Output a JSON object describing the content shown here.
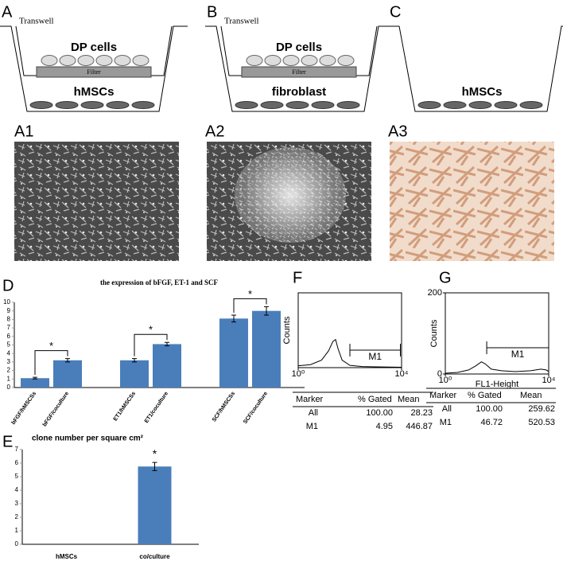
{
  "diagrams": [
    {
      "label": "A",
      "transwell": "Transwell",
      "top_cells": "DP cells",
      "filter": "Filter",
      "bottom_cells": "hMSCs"
    },
    {
      "label": "B",
      "transwell": "Transwell",
      "top_cells": "DP cells",
      "filter": "Filter",
      "bottom_cells": "fibroblast"
    },
    {
      "label": "C",
      "bottom_cells": "hMSCs"
    }
  ],
  "micrographs": [
    {
      "label": "A1"
    },
    {
      "label": "A2"
    },
    {
      "label": "A3"
    }
  ],
  "chart_data": [
    {
      "type": "bar",
      "label": "D",
      "title": "the expression of bFGF, ET-1 and SCF",
      "categories": [
        "bFGF/hMSCSs",
        "bFGF/coculture",
        "ET1/hMSCSs",
        "ET1/coculture",
        "SCF/hMSCSs",
        "SCF/coculture"
      ],
      "values": [
        1.1,
        3.2,
        3.2,
        5.1,
        8.1,
        9.0
      ],
      "errors": [
        0.1,
        0.2,
        0.2,
        0.2,
        0.4,
        0.5
      ],
      "color": "#4a7ebb",
      "ylim": [
        0,
        10
      ],
      "yticks": [
        0,
        1,
        2,
        3,
        4,
        5,
        6,
        7,
        8,
        9,
        10
      ],
      "annotations": [
        {
          "pair": [
            0,
            1
          ],
          "label": "*"
        },
        {
          "pair": [
            2,
            3
          ],
          "label": "*"
        },
        {
          "pair": [
            4,
            5
          ],
          "label": "*"
        }
      ]
    },
    {
      "type": "bar",
      "label": "E",
      "title": "clone number per square cm²",
      "categories": [
        "hMSCs",
        "co/culture"
      ],
      "values": [
        0,
        5.75
      ],
      "errors": [
        0,
        0.3
      ],
      "color": "#4a7ebb",
      "ylim": [
        0,
        7
      ],
      "yticks": [
        0,
        1,
        2,
        3,
        4,
        5,
        6,
        7
      ],
      "annotations": [
        {
          "pair": [
            1,
            1
          ],
          "label": "*"
        }
      ]
    },
    {
      "type": "line",
      "label": "F",
      "ylabel": "Counts",
      "xscale": "log",
      "xlim": [
        1,
        10000
      ],
      "ylim": [
        0,
        200
      ],
      "xticks": [
        {
          "value": 1,
          "label": "10⁰"
        },
        {
          "value": 10000,
          "label": "10⁴"
        }
      ],
      "yticks": [],
      "x": [
        1,
        3,
        8,
        15,
        22,
        28,
        35,
        50,
        100,
        300,
        1000,
        10000
      ],
      "values": [
        5,
        8,
        20,
        45,
        70,
        75,
        50,
        20,
        6,
        3,
        2,
        1
      ],
      "gate": {
        "label": "M1",
        "range": [
          100,
          9000
        ]
      },
      "table": {
        "header": [
          "Marker",
          "% Gated",
          "Mean"
        ],
        "rows": [
          [
            "All",
            "100.00",
            "28.23"
          ],
          [
            "M1",
            "4.95",
            "446.87"
          ]
        ]
      }
    },
    {
      "type": "line",
      "label": "G",
      "ylabel": "Counts",
      "xlabel": "FL1-Height",
      "xscale": "log",
      "xlim": [
        1,
        10000
      ],
      "ylim": [
        0,
        200
      ],
      "xticks": [
        {
          "value": 1,
          "label": "10⁰"
        },
        {
          "value": 10000,
          "label": "10⁴"
        }
      ],
      "yticks": [
        0,
        200
      ],
      "x": [
        1,
        3,
        8,
        15,
        25,
        35,
        60,
        150,
        500,
        2000,
        5000,
        8000,
        10000
      ],
      "values": [
        2,
        4,
        10,
        20,
        30,
        25,
        12,
        8,
        6,
        8,
        12,
        10,
        6
      ],
      "gate": {
        "label": "M1",
        "range": [
          40,
          10000
        ]
      },
      "table": {
        "header": [
          "Marker",
          "% Gated",
          "Mean"
        ],
        "rows": [
          [
            "All",
            "100.00",
            "259.62"
          ],
          [
            "M1",
            "46.72",
            "520.53"
          ]
        ]
      }
    }
  ]
}
